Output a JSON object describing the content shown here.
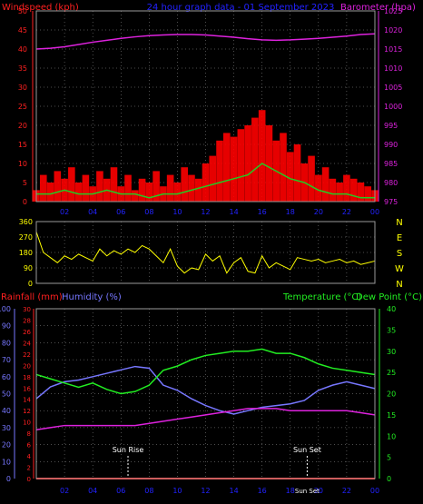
{
  "colors": {
    "background": "#000000",
    "wind": "#ff2020",
    "gust": "#ff0000",
    "wind_avg": "#22cc22",
    "wind_dir": "#ffff00",
    "wind_calm_white": "#ffffff",
    "barometer": "#dd22dd",
    "rainfall": "#ff2020",
    "humidity": "#7777ff",
    "temperature": "#22ee22",
    "dewpoint": "#dd22dd",
    "title": "#2222ff",
    "axis_gray": "#9a9a9a",
    "sun_marker": "#ffffff"
  },
  "header": {
    "left": "Windspeed (kph)",
    "center": "24 hour graph data - 01 September 2023",
    "right": "Barometer (hpa)"
  },
  "chart_data": [
    {
      "type": "line",
      "title": "24 hour graph data - 01 September 2023",
      "x_ticks": [
        "02",
        "04",
        "06",
        "08",
        "10",
        "12",
        "14",
        "16",
        "18",
        "20",
        "22",
        "00"
      ],
      "ylabel_left": "Windspeed (kph)",
      "ylim_left": [
        0,
        50
      ],
      "y_ticks_left": [
        "0",
        "5",
        "10",
        "15",
        "20",
        "25",
        "30",
        "35",
        "40",
        "45",
        "50"
      ],
      "ylabel_right": "Barometer (hpa)",
      "ylim_right": [
        975,
        1025
      ],
      "y_ticks_right": [
        "975",
        "980",
        "985",
        "990",
        "995",
        "1000",
        "1005",
        "1010",
        "1015",
        "1020",
        "1025"
      ],
      "series": [
        {
          "name": "Barometer (hpa)",
          "x": [
            0,
            1,
            2,
            3,
            4,
            5,
            6,
            7,
            8,
            9,
            10,
            11,
            12,
            13,
            14,
            15,
            16,
            17,
            18,
            19,
            20,
            21,
            22,
            23,
            24
          ],
          "values": [
            1015.0,
            1015.2,
            1015.6,
            1016.2,
            1016.8,
            1017.3,
            1017.8,
            1018.2,
            1018.5,
            1018.7,
            1018.8,
            1018.8,
            1018.7,
            1018.4,
            1018.1,
            1017.7,
            1017.4,
            1017.3,
            1017.4,
            1017.6,
            1017.8,
            1018.1,
            1018.4,
            1018.8,
            1019.0
          ]
        },
        {
          "name": "Gust",
          "x": [
            0,
            0.5,
            1,
            1.5,
            2,
            2.5,
            3,
            3.5,
            4,
            4.5,
            5,
            5.5,
            6,
            6.5,
            7,
            7.5,
            8,
            8.5,
            9,
            9.5,
            10,
            10.5,
            11,
            11.5,
            12,
            12.5,
            13,
            13.5,
            14,
            14.5,
            15,
            15.5,
            16,
            16.5,
            17,
            17.5,
            18,
            18.5,
            19,
            19.5,
            20,
            20.5,
            21,
            21.5,
            22,
            22.5,
            23,
            23.5,
            24
          ],
          "values": [
            3,
            7,
            5,
            8,
            6,
            9,
            5,
            7,
            4,
            8,
            6,
            9,
            4,
            7,
            3,
            6,
            5,
            8,
            4,
            7,
            5,
            9,
            7,
            6,
            10,
            12,
            16,
            18,
            17,
            19,
            20,
            22,
            24,
            20,
            16,
            18,
            13,
            15,
            10,
            12,
            7,
            9,
            6,
            5,
            7,
            6,
            5,
            4,
            3
          ]
        },
        {
          "name": "Average",
          "x": [
            0,
            1,
            2,
            3,
            4,
            5,
            6,
            7,
            8,
            9,
            10,
            11,
            12,
            13,
            14,
            15,
            16,
            17,
            18,
            19,
            20,
            21,
            22,
            23,
            24
          ],
          "values": [
            2,
            2,
            3,
            2,
            2,
            3,
            2,
            2,
            1,
            2,
            2,
            3,
            4,
            5,
            6,
            7,
            10,
            8,
            6,
            5,
            3,
            2,
            2,
            1,
            1
          ]
        }
      ]
    },
    {
      "type": "line",
      "x_ticks": [
        "02",
        "04",
        "06",
        "08",
        "10",
        "12",
        "14",
        "16",
        "18",
        "20",
        "22",
        "00"
      ],
      "ylim_left": [
        0,
        360
      ],
      "y_ticks_left": [
        "0",
        "90",
        "180",
        "270",
        "360"
      ],
      "compass": [
        "N",
        "W",
        "S",
        "E",
        "N"
      ],
      "series": [
        {
          "name": "Wind Direction",
          "x": [
            0,
            0.5,
            1,
            1.5,
            2,
            2.5,
            3,
            3.5,
            4,
            4.5,
            5,
            5.5,
            6,
            6.5,
            7,
            7.5,
            8,
            8.5,
            9,
            9.5,
            10,
            10.5,
            11,
            11.5,
            12,
            12.5,
            13,
            13.5,
            14,
            14.5,
            15,
            15.5,
            16,
            16.5,
            17,
            17.5,
            18,
            18.5,
            19,
            19.5,
            20,
            20.5,
            21,
            21.5,
            22,
            22.5,
            23,
            23.5,
            24
          ],
          "values": [
            300,
            180,
            150,
            120,
            160,
            140,
            170,
            150,
            130,
            200,
            160,
            190,
            170,
            200,
            180,
            220,
            200,
            160,
            120,
            200,
            100,
            60,
            90,
            80,
            170,
            130,
            160,
            60,
            120,
            150,
            70,
            60,
            160,
            90,
            120,
            100,
            80,
            150,
            140,
            130,
            140,
            120,
            130,
            140,
            120,
            130,
            110,
            120,
            130
          ]
        }
      ]
    },
    {
      "type": "line",
      "x_ticks": [
        "02",
        "04",
        "06",
        "08",
        "10",
        "12",
        "14",
        "16",
        "18",
        "20",
        "22",
        "00"
      ],
      "ylabel_left": "Rainfall (mm)",
      "ylabel_left2": "Humidity (%)",
      "ylabel_right": "Temperature (°C)",
      "ylabel_right2": "Dew Point (°C)",
      "ylim_rain": [
        0,
        30
      ],
      "y_ticks_rain": [
        "0",
        "2",
        "4",
        "6",
        "8",
        "10",
        "12",
        "14",
        "16",
        "18",
        "20",
        "22",
        "24",
        "26",
        "28",
        "30"
      ],
      "ylim_humidity": [
        0,
        100
      ],
      "y_ticks_humidity": [
        "0",
        "10",
        "20",
        "30",
        "40",
        "50",
        "60",
        "70",
        "80",
        "90",
        "100"
      ],
      "ylim_temp": [
        0,
        40
      ],
      "y_ticks_temp": [
        "0",
        "5",
        "10",
        "15",
        "20",
        "25",
        "30",
        "35",
        "40"
      ],
      "annotations": [
        "Sun Rise",
        "Sun Set",
        "Sun Set"
      ],
      "sun_rise_hour": 6.5,
      "sun_set_hour": 19.2,
      "series": [
        {
          "name": "Temperature (°C)",
          "x": [
            0,
            1,
            2,
            3,
            4,
            5,
            6,
            7,
            8,
            9,
            10,
            11,
            12,
            13,
            14,
            15,
            16,
            17,
            18,
            19,
            20,
            21,
            22,
            23,
            24
          ],
          "values": [
            24.5,
            23.5,
            22.5,
            21.5,
            22.5,
            21.0,
            20.0,
            20.5,
            22.0,
            25.5,
            26.5,
            28.0,
            29.0,
            29.5,
            30.0,
            30.0,
            30.5,
            29.5,
            29.5,
            28.5,
            27.0,
            26.0,
            25.5,
            25.0,
            24.5
          ]
        },
        {
          "name": "Humidity (%)",
          "x": [
            0,
            1,
            2,
            3,
            4,
            5,
            6,
            7,
            8,
            9,
            10,
            11,
            12,
            13,
            14,
            15,
            16,
            17,
            18,
            19,
            20,
            21,
            22,
            23,
            24
          ],
          "values": [
            47,
            54,
            57,
            58,
            60,
            62,
            64,
            66,
            65,
            55,
            52,
            47,
            43,
            40,
            38,
            40,
            42,
            43,
            44,
            46,
            52,
            55,
            57,
            55,
            53
          ]
        },
        {
          "name": "Dew Point (°C)",
          "x": [
            0,
            1,
            2,
            3,
            4,
            5,
            6,
            7,
            8,
            9,
            10,
            11,
            12,
            13,
            14,
            15,
            16,
            17,
            18,
            19,
            20,
            21,
            22,
            23,
            24
          ],
          "values": [
            11.5,
            12.0,
            12.5,
            12.5,
            12.5,
            12.5,
            12.5,
            12.5,
            13.0,
            13.5,
            14.0,
            14.5,
            15.0,
            15.5,
            16.0,
            16.5,
            16.5,
            16.5,
            16.0,
            16.0,
            16.0,
            16.0,
            16.0,
            15.5,
            15.0
          ]
        },
        {
          "name": "Rainfall (mm)",
          "x": [
            0,
            24
          ],
          "values": [
            0,
            0
          ]
        }
      ]
    }
  ]
}
